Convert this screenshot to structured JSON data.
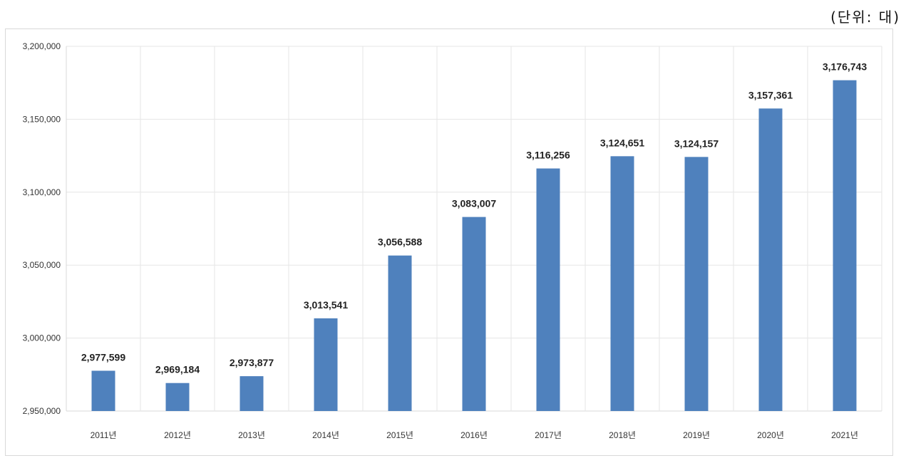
{
  "unit_label": "(단위: 대)",
  "colors": {
    "bar": "#4f81bd",
    "grid": "#e6e6e6",
    "axis": "#d9d9d9"
  },
  "chart_data": {
    "type": "bar",
    "categories": [
      "2011년",
      "2012년",
      "2013년",
      "2014년",
      "2015년",
      "2016년",
      "2017년",
      "2018년",
      "2019년",
      "2020년",
      "2021년"
    ],
    "values": [
      2977599,
      2969184,
      2973877,
      3013541,
      3056588,
      3083007,
      3116256,
      3124651,
      3124157,
      3157361,
      3176743
    ],
    "data_labels": [
      "2,977,599",
      "2,969,184",
      "2,973,877",
      "3,013,541",
      "3,056,588",
      "3,083,007",
      "3,116,256",
      "3,124,651",
      "3,124,157",
      "3,157,361",
      "3,176,743"
    ],
    "ylim": [
      2950000,
      3200000
    ],
    "yticks": [
      2950000,
      3000000,
      3050000,
      3100000,
      3150000,
      3200000
    ],
    "ytick_labels": [
      "2,950,000",
      "3,000,000",
      "3,050,000",
      "3,100,000",
      "3,150,000",
      "3,200,000"
    ],
    "grid": true
  }
}
